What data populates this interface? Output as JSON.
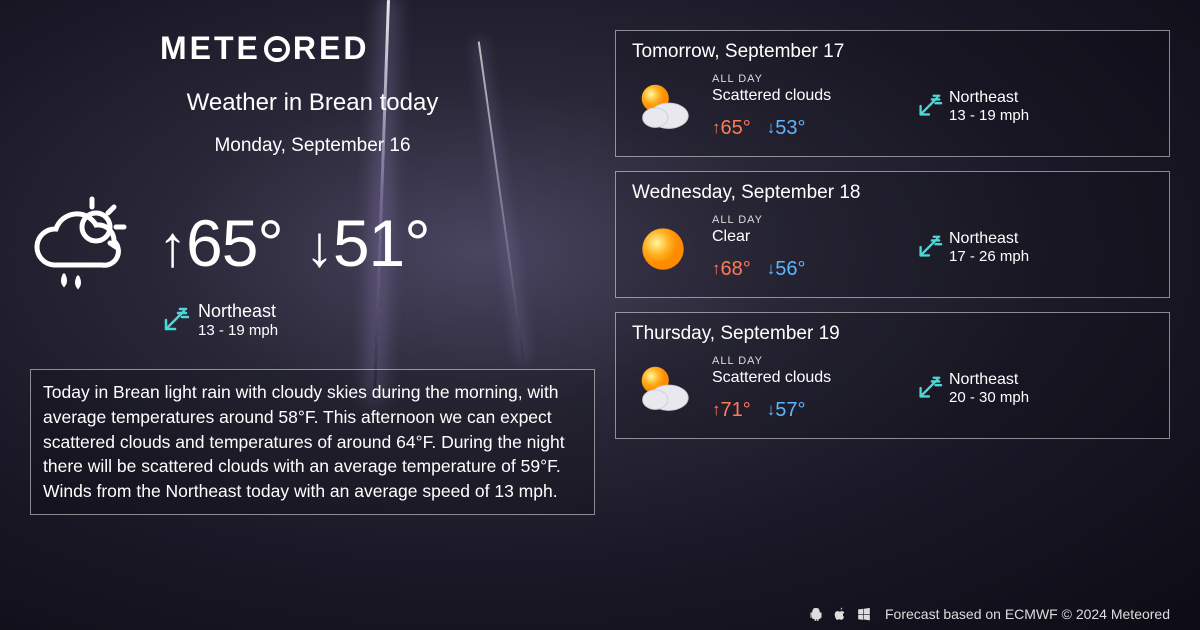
{
  "brand": "METEORED",
  "title": "Weather in Brean today",
  "date": "Monday, September 16",
  "today": {
    "high": "65°",
    "low": "51°",
    "wind_dir": "Northeast",
    "wind_speed": "13 - 19 mph"
  },
  "summary": "Today in Brean light rain with cloudy skies during the morning, with average temperatures around 58°F. This afternoon we can expect scattered clouds and temperatures of around 64°F. During the night there will be scattered clouds with an average temperature of 59°F. Winds from the Northeast today with an average speed of 13 mph.",
  "forecast": [
    {
      "date": "Tomorrow, September 17",
      "period": "ALL DAY",
      "condition": "Scattered clouds",
      "high": "65°",
      "low": "53°",
      "wind_dir": "Northeast",
      "wind_speed": "13 - 19 mph",
      "icon": "partly"
    },
    {
      "date": "Wednesday, September 18",
      "period": "ALL DAY",
      "condition": "Clear",
      "high": "68°",
      "low": "56°",
      "wind_dir": "Northeast",
      "wind_speed": "17 - 26 mph",
      "icon": "sun"
    },
    {
      "date": "Thursday, September 19",
      "period": "ALL DAY",
      "condition": "Scattered clouds",
      "high": "71°",
      "low": "57°",
      "wind_dir": "Northeast",
      "wind_speed": "20 - 30 mph",
      "icon": "partly"
    }
  ],
  "footer": "Forecast based on ECMWF © 2024 Meteored",
  "colors": {
    "high": "#ff7a59",
    "low": "#5db6ff",
    "wind_arrow": "#4dd8d8"
  }
}
